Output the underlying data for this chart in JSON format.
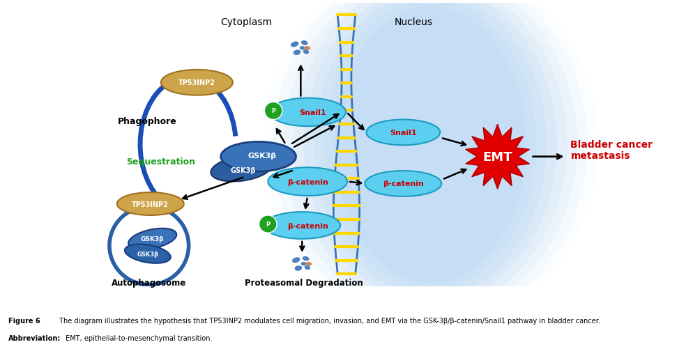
{
  "fig_width": 9.94,
  "fig_height": 5.02,
  "bg_color": "#ffffff",
  "caption_bold": "Figure 6",
  "caption_text": " The diagram illustrates the hypothesis that TP53INP2 modulates cell migration, invasion, and EMT via the GSK-3β/β-catenin/Snail1 pathway in bladder cancer.",
  "caption_abbrev_bold": "Abbreviation:",
  "caption_abbrev_text": " EMT, epithelial-to-mesenchymal transition.",
  "cytoplasm_label": "Cytoplasm",
  "nucleus_label": "Nucleus",
  "phagophore_label": "Phagophore",
  "sequestration_label": "Sequestration",
  "autophagosome_label": "Autophagosome",
  "proteasomal_label": "Proteasomal Degradation",
  "bladder_label": "Bladder cancer\nmetastasis",
  "emt_label": "EMT",
  "tp53inp2_color": "#CDA44A",
  "gsk3b_ellipse_color": "#3A72B8",
  "snail1_color": "#5CCFF0",
  "bcatenin_color": "#5CCFF0",
  "nucleus_bg": "#BDDAF5",
  "emt_fill": "#E00000",
  "arrow_color": "#000000",
  "phago_arrow_color": "#1A4DB5",
  "sequestration_color": "#22A020",
  "phospho_color": "#22A020",
  "snail1_text_color": "#CC0000",
  "bcatenin_text_color": "#CC0000"
}
